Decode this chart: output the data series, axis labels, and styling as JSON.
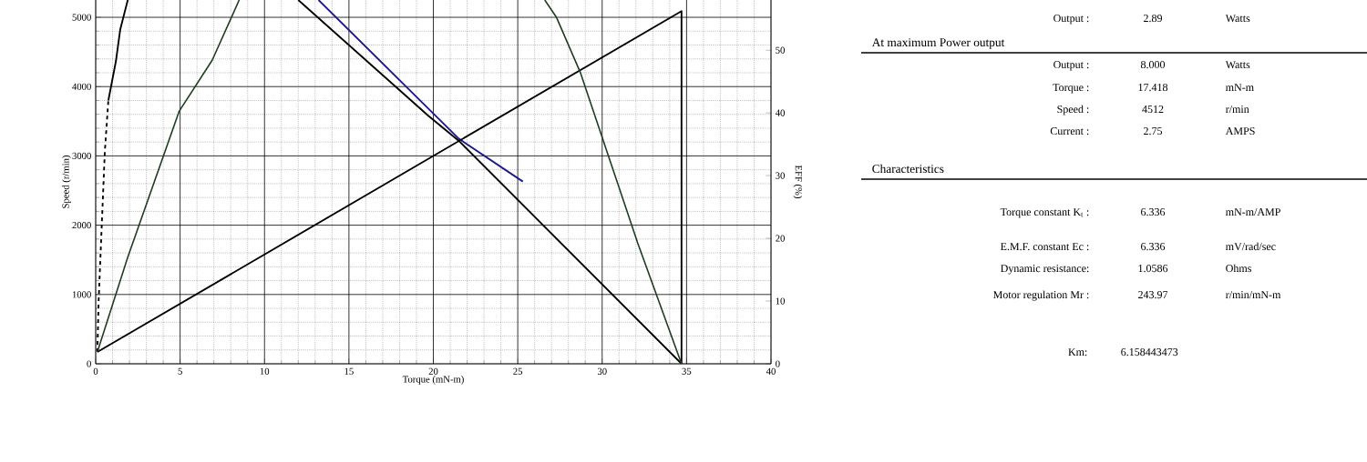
{
  "chart_data": [
    {
      "type": "line",
      "xlabel": "Torque (mN-m)",
      "ylabel": "Speed (r/min)",
      "y2label": "EFF (%)",
      "xlim": [
        0,
        40
      ],
      "xticks": [
        0,
        5,
        10,
        15,
        20,
        25,
        30,
        35,
        40
      ],
      "ylim": [
        0,
        5250
      ],
      "yticks": [
        0,
        1000,
        2000,
        3000,
        4000,
        5000
      ],
      "y2lim": [
        0,
        58
      ],
      "y2ticks": [
        0,
        10,
        20,
        30,
        40,
        50
      ],
      "grid": true,
      "series": [
        {
          "color": "#000000",
          "x": [
            12.0,
            19.7,
            21.5,
            34.7
          ],
          "values": [
            5250,
            3580,
            3220,
            0
          ]
        },
        {
          "color": "#1a1a8c",
          "x": [
            13.2,
            21.5,
            25.3
          ],
          "values": [
            5250,
            3250,
            2630
          ]
        },
        {
          "color": "#000000",
          "x": [
            0.1,
            34.7,
            34.7
          ],
          "values": [
            170,
            5090,
            0
          ]
        },
        {
          "color": "#1f3d1f",
          "axis": "y2",
          "x": [
            0.1,
            1.9,
            4.95,
            6.9,
            8.5,
            17.5,
            26.6,
            27.3,
            28.7,
            32.1,
            34.7
          ],
          "values": [
            1.9,
            17.0,
            40.3,
            48.4,
            58,
            null,
            58,
            55.2,
            46.5,
            19.3,
            0
          ]
        },
        {
          "color": "#000000",
          "x": [
            0.75,
            1.2,
            1.45,
            1.9
          ],
          "values": [
            3800,
            4370,
            4820,
            5250
          ]
        },
        {
          "color": "#000000",
          "line_style": "dashed",
          "x": [
            0.1,
            0.17,
            0.54,
            0.75
          ],
          "values": [
            170,
            880,
            3060,
            3800
          ]
        }
      ]
    },
    {
      "type": "other",
      "annotations": [
        "Output :",
        "2.89",
        "Watts",
        "At maximum Power output",
        "Output :",
        "8.000",
        "Watts",
        "Torque :",
        "17.418",
        "mN-m",
        "Speed :",
        "4512",
        "r/min",
        "Current :",
        "2.75",
        "AMPS",
        "Characteristics",
        "Torque constant K$_{t}$ :",
        "6.336",
        "mN-m/AMP",
        "E.M.F. constant Ec :",
        "6.336",
        "mV/rad/sec",
        "Dynamic resistance:",
        "1.0586",
        "Ohms",
        "Motor regulation Mr :",
        "243.97",
        "r/min/mN-m",
        "Km:",
        "6.158443473"
      ]
    }
  ]
}
